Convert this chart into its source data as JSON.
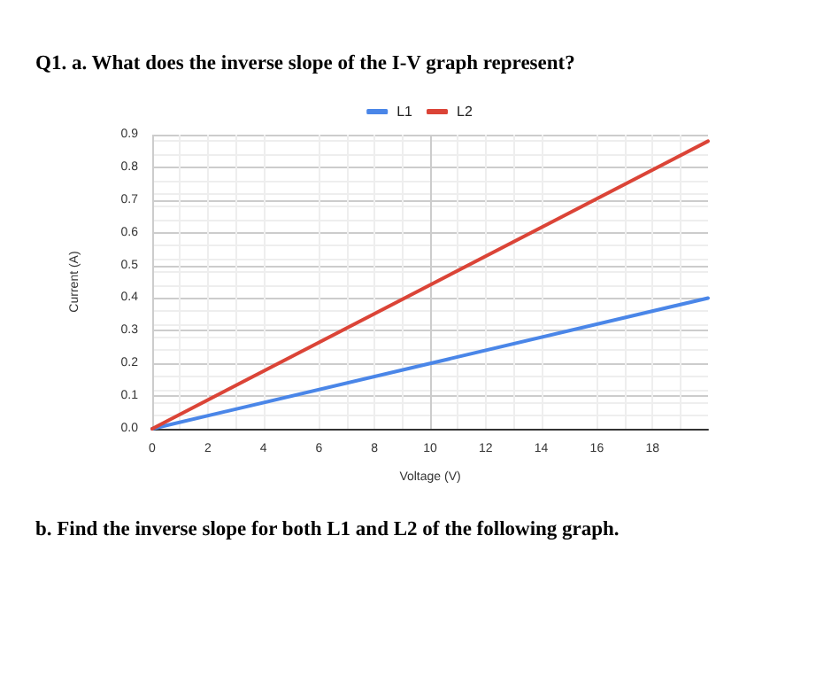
{
  "chart_data": {
    "type": "line",
    "title": "Q1.  a. What does the inverse slope of the I-V graph represent?",
    "xlabel": "Voltage (V)",
    "ylabel": "Current (A)",
    "x": [
      0,
      20
    ],
    "series": [
      {
        "name": "L1",
        "color": "#4a86e8",
        "values": [
          0,
          0.4
        ]
      },
      {
        "name": "L2",
        "color": "#db4437",
        "values": [
          0,
          0.88
        ]
      }
    ],
    "xlim": [
      0,
      20
    ],
    "xticks": [
      0,
      2,
      4,
      6,
      8,
      10,
      12,
      14,
      16,
      18
    ],
    "ylim": [
      0,
      0.9
    ],
    "yticks": [
      {
        "value": 0,
        "label": "0.0"
      },
      0.1,
      0.2,
      0.3,
      0.4,
      0.5,
      0.6,
      0.7,
      0.8,
      0.9
    ],
    "grid": true,
    "legend": "top",
    "marker": "none",
    "line_style": "solid",
    "annotations": [
      "b. Find the inverse slope for both L1 and L2 of the following graph."
    ]
  }
}
